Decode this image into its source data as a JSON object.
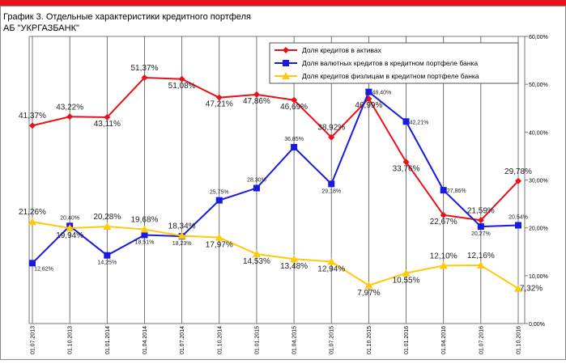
{
  "chart_data": {
    "type": "line",
    "title": "График 3. Отдельные характеристики кредитного портфеля",
    "subtitle": "АБ \"УКРГАЗБАНК\"",
    "categories": [
      "01.07.2013",
      "01.10.2013",
      "01.01.2014",
      "01.04.2014",
      "01.07.2014",
      "01.10.2014",
      "01.01.2015",
      "01.04.2015",
      "01.07.2015",
      "01.10.2015",
      "01.01.2016",
      "01.04.2016",
      "01.07.2016",
      "01.10.2016"
    ],
    "series": [
      {
        "name": "Доля кредитов в активах",
        "color": "#e8121a",
        "marker": "diamond",
        "values": [
          41.37,
          43.22,
          43.11,
          51.37,
          51.08,
          47.21,
          47.86,
          46.69,
          38.92,
          46.99,
          33.76,
          22.67,
          21.59,
          29.78
        ],
        "value_labels": [
          "41,37%",
          "43,22%",
          "43,11%",
          "51,37%",
          "51,08%",
          "47,21%",
          "47,86%",
          "46,69%",
          "38,92%",
          "46,99%",
          "33,76%",
          "22,67%",
          "21,59%",
          "29,78%"
        ]
      },
      {
        "name": "Доля валютных кредитов в кредитном портфеле банка",
        "color": "#1a1ae0",
        "marker": "square",
        "values": [
          12.62,
          20.4,
          14.25,
          18.51,
          18.23,
          25.75,
          28.3,
          36.85,
          29.18,
          48.4,
          42.21,
          27.86,
          20.27,
          20.54
        ],
        "value_labels": [
          "12,62%",
          "20,40%",
          "14,25%",
          "18,51%",
          "18,23%",
          "25,75%",
          "28,30%",
          "36,85%",
          "29,18%",
          "48,40%",
          "42,21%",
          "27,86%",
          "20,27%",
          "20,54%"
        ]
      },
      {
        "name": "Доля кредитов физлицам в кредитном портфеле банка",
        "color": "#ffc90e",
        "marker": "triangle",
        "values": [
          21.26,
          19.94,
          20.28,
          19.68,
          18.34,
          17.97,
          14.53,
          13.48,
          12.94,
          7.97,
          10.55,
          12.1,
          12.16,
          7.32
        ],
        "value_labels": [
          "21,26%",
          "19,94%",
          "20,28%",
          "19,68%",
          "18,34%",
          "17,97%",
          "14,53%",
          "13,48%",
          "12,94%",
          "7,97%",
          "10,55%",
          "12,10%",
          "12,16%",
          "7,32%"
        ]
      }
    ],
    "ylim": [
      0,
      60
    ],
    "yticks": [
      {
        "value": 0,
        "label": "0,00%"
      },
      {
        "value": 10,
        "label": "10,00%"
      },
      {
        "value": 20,
        "label": "20,00%"
      },
      {
        "value": 30,
        "label": "30,00%"
      },
      {
        "value": 40,
        "label": "40,00%"
      },
      {
        "value": 50,
        "label": "50,00%"
      },
      {
        "value": 60,
        "label": "60,00%"
      }
    ],
    "y_axis_side": "right",
    "grid": "vertical",
    "legend": "top-right"
  }
}
